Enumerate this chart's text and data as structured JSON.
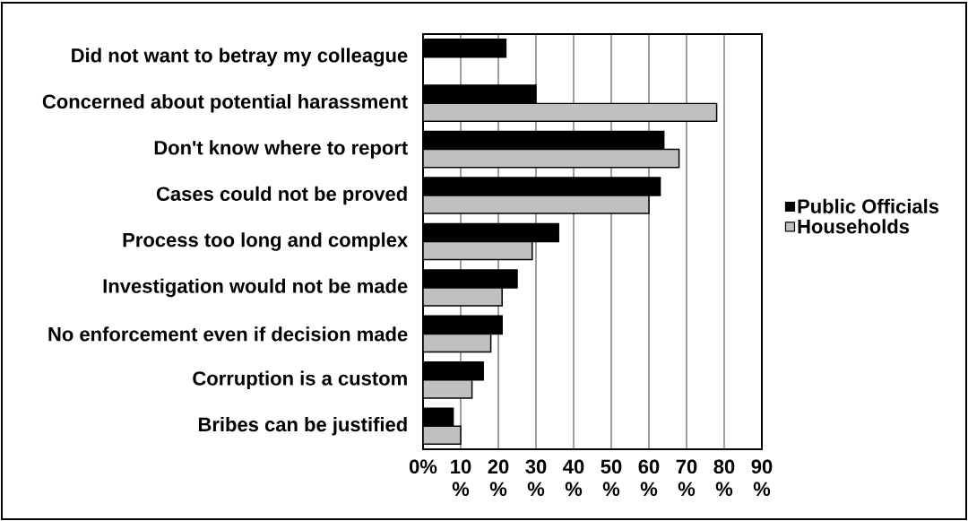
{
  "chart_data": {
    "type": "bar",
    "orientation": "horizontal",
    "categories": [
      "Did not want to betray my colleague",
      "Concerned about potential harassment",
      "Don't know where to report",
      "Cases could not be proved",
      "Process too long and complex",
      "Investigation would not be made",
      "No enforcement even if decision made",
      "Corruption is a custom",
      "Bribes can be justified"
    ],
    "series": [
      {
        "name": "Public Officials",
        "color": "#000000",
        "values": [
          22,
          30,
          64,
          63,
          36,
          25,
          21,
          16,
          8
        ]
      },
      {
        "name": "Households",
        "color": "#c0c0c0",
        "values": [
          null,
          78,
          68,
          60,
          29,
          21,
          18,
          13,
          10
        ]
      }
    ],
    "xlim": [
      0,
      90
    ],
    "xticks": [
      {
        "value": 0,
        "label": "0%"
      },
      {
        "value": 10,
        "label": "10%"
      },
      {
        "value": 20,
        "label": "20%"
      },
      {
        "value": 30,
        "label": "30%"
      },
      {
        "value": 40,
        "label": "40%"
      },
      {
        "value": 50,
        "label": "50%"
      },
      {
        "value": 60,
        "label": "60%"
      },
      {
        "value": 70,
        "label": "70%"
      },
      {
        "value": 80,
        "label": "80%"
      },
      {
        "value": 90,
        "label": "90%"
      }
    ],
    "grid": "x",
    "legend": "right"
  }
}
